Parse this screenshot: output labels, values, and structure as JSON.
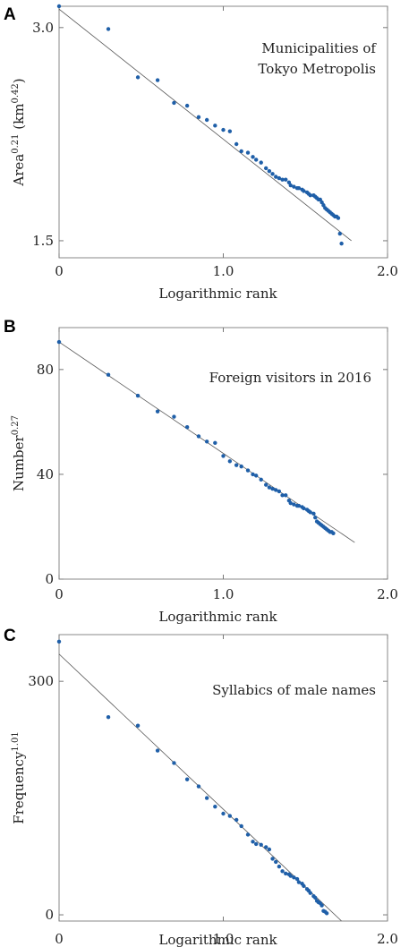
{
  "chart_data": [
    {
      "type": "scatter",
      "panel_letter": "A",
      "annotation_lines": [
        "Municipalities of",
        "Tokyo Metropolis"
      ],
      "xlabel": "Logarithmic rank",
      "ylabel_base": "Area",
      "ylabel_sup1": "0.21",
      "ylabel_mid": " (km",
      "ylabel_sup2": "0.42",
      "ylabel_end": ")",
      "xlim": [
        0,
        2.0
      ],
      "ylim": [
        1.38,
        3.15
      ],
      "xticks": [
        0,
        1.0,
        2.0
      ],
      "xtick_labels": [
        "0",
        "1.0",
        "2.0"
      ],
      "yticks": [
        1.5,
        3.0
      ],
      "ytick_labels": [
        "1.5",
        "3.0"
      ],
      "fit_line": [
        [
          0,
          3.13
        ],
        [
          1.78,
          1.5
        ]
      ],
      "point_color": "#1f5fa8",
      "x": [
        0,
        0.3,
        0.48,
        0.6,
        0.7,
        0.78,
        0.85,
        0.9,
        0.95,
        1.0,
        1.04,
        1.08,
        1.11,
        1.15,
        1.18,
        1.2,
        1.23,
        1.26,
        1.28,
        1.3,
        1.32,
        1.34,
        1.36,
        1.38,
        1.4,
        1.41,
        1.43,
        1.45,
        1.46,
        1.48,
        1.49,
        1.51,
        1.52,
        1.53,
        1.55,
        1.56,
        1.57,
        1.58,
        1.59,
        1.6,
        1.61,
        1.62,
        1.63,
        1.64,
        1.65,
        1.66,
        1.67,
        1.68,
        1.69,
        1.7,
        1.71,
        1.72
      ],
      "y": [
        3.15,
        2.99,
        2.65,
        2.63,
        2.47,
        2.45,
        2.37,
        2.35,
        2.31,
        2.28,
        2.27,
        2.18,
        2.13,
        2.12,
        2.09,
        2.07,
        2.05,
        2.01,
        1.99,
        1.97,
        1.95,
        1.94,
        1.93,
        1.93,
        1.91,
        1.89,
        1.88,
        1.87,
        1.87,
        1.86,
        1.85,
        1.84,
        1.83,
        1.82,
        1.82,
        1.81,
        1.8,
        1.79,
        1.79,
        1.77,
        1.75,
        1.73,
        1.72,
        1.71,
        1.7,
        1.69,
        1.68,
        1.67,
        1.67,
        1.66,
        1.55,
        1.48
      ]
    },
    {
      "type": "scatter",
      "panel_letter": "B",
      "annotation_lines": [
        "Foreign visitors in 2016"
      ],
      "xlabel": "Logarithmic rank",
      "ylabel_base": "Number",
      "ylabel_sup1": "0.27",
      "xlim": [
        0,
        2.0
      ],
      "ylim": [
        0,
        96
      ],
      "xticks": [
        0,
        1.0,
        2.0
      ],
      "xtick_labels": [
        "0",
        "1.0",
        "2.0"
      ],
      "yticks": [
        0,
        40,
        80
      ],
      "ytick_labels": [
        "0",
        "40",
        "80"
      ],
      "fit_line": [
        [
          0,
          90.5
        ],
        [
          1.8,
          14
        ]
      ],
      "point_color": "#1f5fa8",
      "x": [
        0,
        0.3,
        0.48,
        0.6,
        0.7,
        0.78,
        0.85,
        0.9,
        0.95,
        1.0,
        1.04,
        1.08,
        1.11,
        1.15,
        1.18,
        1.2,
        1.23,
        1.26,
        1.28,
        1.3,
        1.32,
        1.34,
        1.36,
        1.38,
        1.4,
        1.41,
        1.43,
        1.45,
        1.46,
        1.48,
        1.49,
        1.51,
        1.52,
        1.53,
        1.55,
        1.56,
        1.57,
        1.58,
        1.59,
        1.6,
        1.61,
        1.62,
        1.63,
        1.64,
        1.65,
        1.66,
        1.67
      ],
      "y": [
        90.5,
        78,
        70,
        64,
        62,
        58,
        54.5,
        52.5,
        52,
        47,
        45,
        43.5,
        43,
        41.5,
        40,
        39.5,
        38,
        36,
        35,
        34.5,
        34,
        33.5,
        32,
        32,
        30,
        29,
        28.5,
        28,
        28,
        27.5,
        27,
        26.5,
        26,
        25.5,
        25,
        23.5,
        22,
        21.5,
        21,
        20.5,
        20,
        19.5,
        19,
        18.5,
        18,
        18,
        17.5
      ]
    },
    {
      "type": "scatter",
      "panel_letter": "C",
      "annotation_lines": [
        "Syllabics of male names"
      ],
      "xlabel": "Logarithmic rank",
      "ylabel_base": "Frequency",
      "ylabel_sup1": "1.01",
      "xlim": [
        0,
        2.0
      ],
      "ylim": [
        -8,
        360
      ],
      "xticks": [
        0,
        1.0,
        2.0
      ],
      "xtick_labels": [
        "0",
        "1.0",
        "2.0"
      ],
      "yticks": [
        0,
        300
      ],
      "ytick_labels": [
        "0",
        "300"
      ],
      "fit_line": [
        [
          0,
          335
        ],
        [
          1.72,
          -8
        ]
      ],
      "point_color": "#1f5fa8",
      "x": [
        0,
        0.3,
        0.48,
        0.6,
        0.7,
        0.78,
        0.85,
        0.9,
        0.95,
        1.0,
        1.04,
        1.08,
        1.11,
        1.15,
        1.18,
        1.2,
        1.23,
        1.26,
        1.28,
        1.3,
        1.32,
        1.34,
        1.36,
        1.38,
        1.4,
        1.41,
        1.43,
        1.45,
        1.46,
        1.48,
        1.49,
        1.51,
        1.52,
        1.53,
        1.55,
        1.56,
        1.57,
        1.58,
        1.59,
        1.6,
        1.61,
        1.62,
        1.63
      ],
      "y": [
        351,
        254,
        243,
        211,
        195,
        174,
        165,
        150,
        139,
        130,
        127,
        122,
        114,
        103,
        94,
        91,
        90,
        87,
        84,
        72,
        68,
        62,
        56,
        53,
        52,
        50,
        48,
        46,
        42,
        40,
        37,
        33,
        31,
        28,
        24,
        22,
        18,
        16,
        15,
        12,
        5,
        4,
        2
      ]
    }
  ]
}
